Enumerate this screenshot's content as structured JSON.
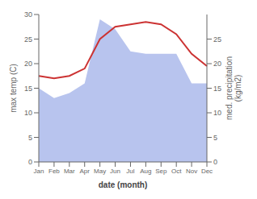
{
  "chart_data": {
    "type": "line",
    "categories": [
      "Jan",
      "Feb",
      "Mar",
      "Apr",
      "May",
      "Jun",
      "Jul",
      "Aug",
      "Sep",
      "Oct",
      "Nov",
      "Dec"
    ],
    "xlabel": "date (month)",
    "ylabel": "max temp (C)",
    "y2label": "med. precipitation\n(kg/m2)",
    "ylim": [
      0,
      30
    ],
    "yticks": [
      0,
      5,
      10,
      15,
      20,
      25,
      30
    ],
    "y2lim": [
      0,
      30
    ],
    "y2ticks": [
      0,
      5,
      10,
      15,
      20,
      25
    ],
    "grid": false,
    "series": [
      {
        "type": "area",
        "axis": "y2",
        "color": "#b8c4ee",
        "values": [
          15.0,
          13.0,
          14.0,
          16.0,
          29.0,
          27.0,
          22.5,
          22.0,
          22.0,
          22.0,
          16.0,
          16.0
        ]
      },
      {
        "type": "line",
        "color": "#cc3333",
        "values": [
          17.5,
          17.0,
          17.5,
          19.0,
          25.0,
          27.5,
          28.0,
          28.5,
          28.0,
          26.0,
          22.0,
          19.5
        ]
      }
    ]
  }
}
